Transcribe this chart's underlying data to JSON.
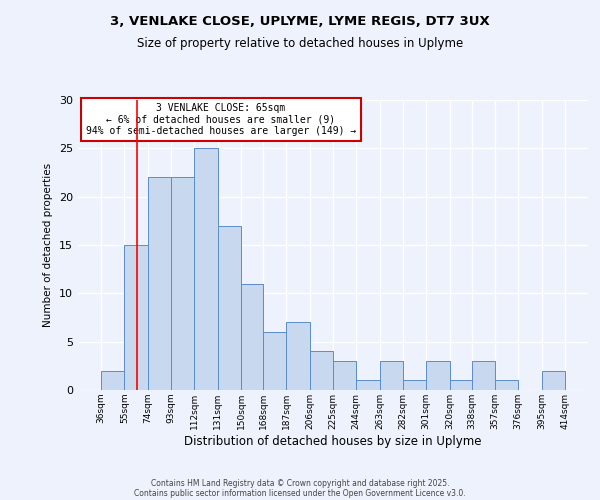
{
  "title": "3, VENLAKE CLOSE, UPLYME, LYME REGIS, DT7 3UX",
  "subtitle": "Size of property relative to detached houses in Uplyme",
  "xlabel": "Distribution of detached houses by size in Uplyme",
  "ylabel": "Number of detached properties",
  "bin_edges": [
    36,
    55,
    74,
    93,
    112,
    131,
    150,
    168,
    187,
    206,
    225,
    244,
    263,
    282,
    301,
    320,
    338,
    357,
    376,
    395,
    414
  ],
  "bar_heights": [
    2,
    15,
    22,
    22,
    25,
    17,
    11,
    6,
    7,
    4,
    3,
    1,
    3,
    1,
    3,
    1,
    3,
    1,
    0,
    2
  ],
  "bar_facecolor": "#c8d8ee",
  "bar_edgecolor": "#5b8dc8",
  "background_color": "#eef2fc",
  "grid_color": "#ffffff",
  "red_line_x": 65,
  "annotation_title": "3 VENLAKE CLOSE: 65sqm",
  "annotation_line1": "← 6% of detached houses are smaller (9)",
  "annotation_line2": "94% of semi-detached houses are larger (149) →",
  "annotation_box_color": "#ffffff",
  "annotation_border_color": "#cc0000",
  "ylim": [
    0,
    30
  ],
  "yticks": [
    0,
    5,
    10,
    15,
    20,
    25,
    30
  ],
  "footer1": "Contains HM Land Registry data © Crown copyright and database right 2025.",
  "footer2": "Contains public sector information licensed under the Open Government Licence v3.0."
}
